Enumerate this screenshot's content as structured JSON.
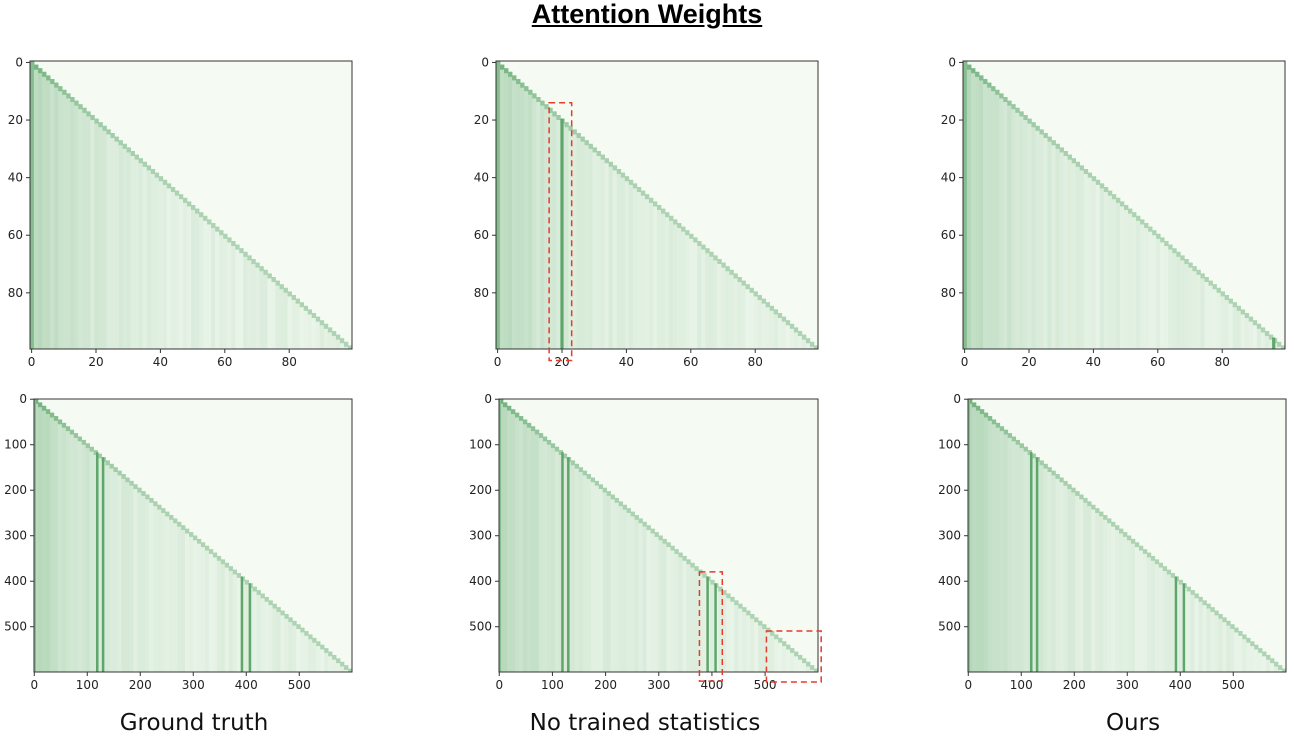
{
  "figure": {
    "title": "Attention Weights",
    "captions": [
      "Ground truth",
      "No trained statistics",
      "Ours"
    ]
  },
  "colors": {
    "cmap_low": "#f5fbf3",
    "cmap_high": "#2b8a3e",
    "highlight_box": "#e53b2c"
  },
  "chart_data": [
    {
      "type": "heatmap",
      "column": "Ground truth",
      "row": "top",
      "size": 100,
      "xticks": [
        0,
        20,
        40,
        60,
        80
      ],
      "yticks": [
        0,
        20,
        40,
        60,
        80
      ],
      "strong_columns": [],
      "highlight_boxes": []
    },
    {
      "type": "heatmap",
      "column": "No trained statistics",
      "row": "top",
      "size": 100,
      "xticks": [
        0,
        20,
        40,
        60,
        80
      ],
      "yticks": [
        0,
        20,
        40,
        60,
        80
      ],
      "strong_columns": [
        20
      ],
      "highlight_boxes": [
        {
          "x": [
            16.5,
            23.5
          ],
          "y": [
            14.5,
            104
          ]
        }
      ]
    },
    {
      "type": "heatmap",
      "column": "Ours",
      "row": "top",
      "size": 100,
      "xticks": [
        0,
        20,
        40,
        60,
        80
      ],
      "yticks": [
        0,
        20,
        40,
        60,
        80
      ],
      "strong_columns": [
        96
      ],
      "highlight_boxes": []
    },
    {
      "type": "heatmap",
      "column": "Ground truth",
      "row": "bottom",
      "size": 600,
      "xticks": [
        0,
        100,
        200,
        300,
        400,
        500
      ],
      "yticks": [
        0,
        100,
        200,
        300,
        400,
        500
      ],
      "strong_columns": [
        117,
        128,
        390,
        405
      ],
      "highlight_boxes": []
    },
    {
      "type": "heatmap",
      "column": "No trained statistics",
      "row": "bottom",
      "size": 600,
      "xticks": [
        0,
        100,
        200,
        300,
        400,
        500
      ],
      "yticks": [
        0,
        100,
        200,
        300,
        400,
        500
      ],
      "strong_columns": [
        117,
        128,
        390,
        405
      ],
      "highlight_boxes": [
        {
          "x": [
            377,
            420
          ],
          "y": [
            380,
            620
          ]
        },
        {
          "x": [
            503,
            606
          ],
          "y": [
            510,
            622
          ]
        }
      ]
    },
    {
      "type": "heatmap",
      "column": "Ours",
      "row": "bottom",
      "size": 600,
      "xticks": [
        0,
        100,
        200,
        300,
        400,
        500
      ],
      "yticks": [
        0,
        100,
        200,
        300,
        400,
        500
      ],
      "strong_columns": [
        117,
        128,
        390,
        405
      ],
      "highlight_boxes": []
    }
  ]
}
